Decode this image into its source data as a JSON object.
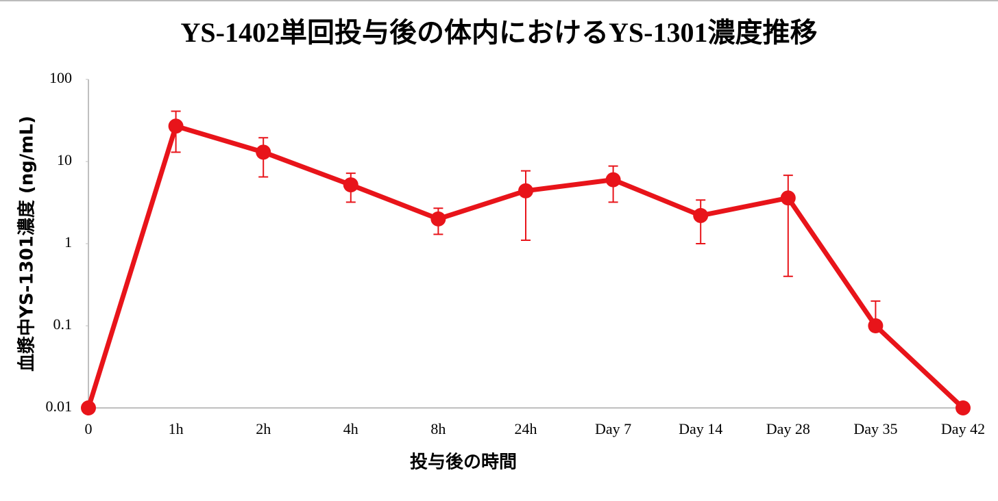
{
  "chart_data": {
    "type": "line",
    "title": "YS-1402単回投与後の体内におけるYS-1301濃度推移",
    "x_label": "投与後の時間",
    "y_label": "血漿中YS-1301濃度 (ng/mL)",
    "categories": [
      "0",
      "1h",
      "2h",
      "4h",
      "8h",
      "24h",
      "Day 7",
      "Day 14",
      "Day 28",
      "Day 35",
      "Day 42"
    ],
    "values": [
      0.01,
      27,
      13,
      5.2,
      2.0,
      4.4,
      6.0,
      2.2,
      3.6,
      0.1,
      0.01
    ],
    "errors": [
      null,
      14,
      6.5,
      2,
      0.7,
      3.3,
      2.8,
      1.2,
      3.2,
      0.1,
      null
    ],
    "color": "#e8141a",
    "ylim": [
      0.01,
      100
    ],
    "yticks": [
      0.01,
      0.1,
      1,
      10,
      100
    ],
    "log_scale": true,
    "grid": false
  }
}
